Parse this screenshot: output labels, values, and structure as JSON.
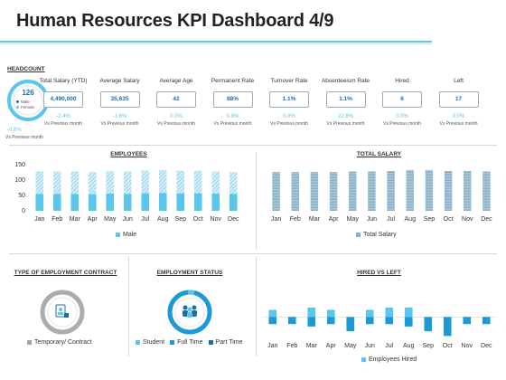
{
  "title": "Human Resources KPI Dashboard 4/9",
  "headcount": {
    "label": "HEADCOUNT",
    "value": "126",
    "legend": [
      "Male",
      "Female"
    ],
    "pct": "-0.8%",
    "vs": "Vs Previous month"
  },
  "kpis": [
    {
      "label": "Total Salary (YTD)",
      "value": "4,490,000",
      "pct": "-2.4%",
      "vs": "Vs Previous month"
    },
    {
      "label": "Average Salary",
      "value": "35,635",
      "pct": "-1.6%",
      "vs": "Vs Previous month"
    },
    {
      "label": "Average Age",
      "value": "42",
      "pct": "0.0%",
      "vs": "Vs Previous month"
    },
    {
      "label": "Permanent Rate",
      "value": "88%",
      "pct": "0.8%",
      "vs": "Vs Previous month"
    },
    {
      "label": "Turnover Rate",
      "value": "1.1%",
      "pct": "0.8%",
      "vs": "Vs Previous month"
    },
    {
      "label": "Absenteeism Rate",
      "value": "1.1%",
      "pct": "22.8%",
      "vs": "Vs Previous month"
    },
    {
      "label": "Hired",
      "value": "6",
      "pct": "0.0%",
      "vs": "Vs Previous month"
    },
    {
      "label": "Left",
      "value": "17",
      "pct": "0.0%",
      "vs": "Vs Previous month"
    }
  ],
  "colors": {
    "accent": "#5bc6ec",
    "dark": "#1b6fa8",
    "gray": "#9fa4a8",
    "hatch": "#a8dcf2"
  },
  "chart_data": [
    {
      "type": "bar",
      "title": "EMPLOYEES",
      "categories": [
        "Jan",
        "Feb",
        "Mar",
        "Apr",
        "May",
        "Jun",
        "Jul",
        "Aug",
        "Sep",
        "Oct",
        "Nov",
        "Dec"
      ],
      "series": [
        {
          "name": "Male",
          "values": [
            55,
            55,
            55,
            54,
            56,
            55,
            57,
            58,
            57,
            57,
            56,
            55
          ]
        }
      ],
      "totals": [
        128,
        128,
        128,
        126,
        129,
        128,
        131,
        133,
        130,
        130,
        128,
        126
      ],
      "yticks": [
        0,
        50,
        100,
        150
      ],
      "ylim": [
        0,
        150
      ]
    },
    {
      "type": "bar",
      "title": "TOTAL SALARY",
      "categories": [
        "Jan",
        "Feb",
        "Mar",
        "Apr",
        "May",
        "Jun",
        "Jul",
        "Aug",
        "Sep",
        "Oct",
        "Nov",
        "Dec"
      ],
      "series": [
        {
          "name": "Total Salary",
          "values": [
            0.78,
            0.78,
            0.78,
            0.78,
            0.79,
            0.79,
            0.8,
            0.82,
            0.82,
            0.8,
            0.8,
            0.79
          ]
        }
      ],
      "ylim": [
        0,
        1
      ]
    },
    {
      "type": "pie",
      "title": "TYPE OF EMPLOYMENT CONTRACT",
      "labels": [
        "Temporary/ Contract"
      ],
      "values": [
        100
      ]
    },
    {
      "type": "pie",
      "title": "EMPLOYMENT STATUS",
      "labels": [
        "Student",
        "Full Time",
        "Part Time"
      ],
      "values": [
        5,
        90,
        5
      ]
    },
    {
      "type": "bar",
      "title": "HIRED VS LEFT",
      "categories": [
        "Jan",
        "Feb",
        "Mar",
        "Apr",
        "May",
        "Jun",
        "Jul",
        "Aug",
        "Sep",
        "Oct",
        "Nov",
        "Dec"
      ],
      "series": [
        {
          "name": "Employees Hired",
          "values": [
            3,
            0,
            4,
            3,
            0,
            3,
            4,
            4,
            0,
            0,
            0,
            0
          ]
        },
        {
          "name": "",
          "values": [
            -3,
            -3,
            -4,
            -3,
            -6,
            -3,
            -3,
            -4,
            -6,
            -8,
            -3,
            -3
          ]
        }
      ],
      "ylim": [
        -9,
        7
      ]
    }
  ]
}
